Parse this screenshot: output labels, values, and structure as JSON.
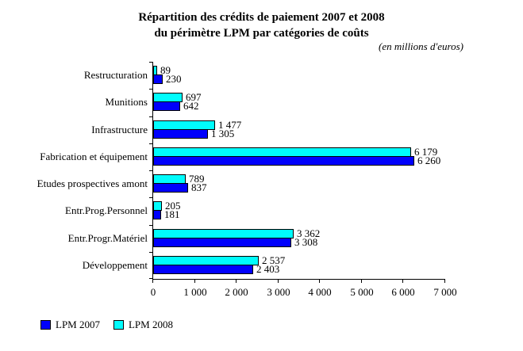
{
  "title": {
    "line1": "Répartition des crédits de paiement 2007 et 2008",
    "line2": "du périmètre LPM par catégories de coûts",
    "unit_note": "(en millions d'euros)"
  },
  "legend": [
    {
      "label": "LPM 2007",
      "color": "#0000FC"
    },
    {
      "label": "LPM 2008",
      "color": "#00FCFC"
    }
  ],
  "chart_data": {
    "type": "bar",
    "orientation": "horizontal",
    "title": "Répartition des crédits de paiement 2007 et 2008 du périmètre LPM par catégories de coûts",
    "unit": "en millions d'euros",
    "categories": [
      "Restructuration",
      "Munitions",
      "Infrastructure",
      "Fabrication et équipement",
      "Etudes prospectives amont",
      "Entr.Prog.Personnel",
      "Entr.Progr.Matériel",
      "Développement"
    ],
    "series": [
      {
        "name": "LPM 2007",
        "color": "#0000FC",
        "values": [
          230,
          642,
          1305,
          6260,
          837,
          181,
          3308,
          2403
        ],
        "value_labels": [
          "230",
          "642",
          "1 305",
          "6 260",
          "837",
          "181",
          "3 308",
          "2 403"
        ]
      },
      {
        "name": "LPM 2008",
        "color": "#00FCFC",
        "values": [
          89,
          697,
          1477,
          6179,
          789,
          205,
          3362,
          2537
        ],
        "value_labels": [
          "89",
          "697",
          "1 477",
          "6 179",
          "789",
          "205",
          "3 362",
          "2 537"
        ]
      }
    ],
    "bar_order_top_to_bottom": [
      "LPM 2008",
      "LPM 2007"
    ],
    "xlim": [
      0,
      7000
    ],
    "x_ticks": [
      0,
      1000,
      2000,
      3000,
      4000,
      5000,
      6000,
      7000
    ],
    "x_tick_labels": [
      "0",
      "1 000",
      "2 000",
      "3 000",
      "4 000",
      "5 000",
      "6 000",
      "7 000"
    ],
    "grid": false,
    "value_labels_shown": true,
    "legend_position": "bottom-left"
  }
}
